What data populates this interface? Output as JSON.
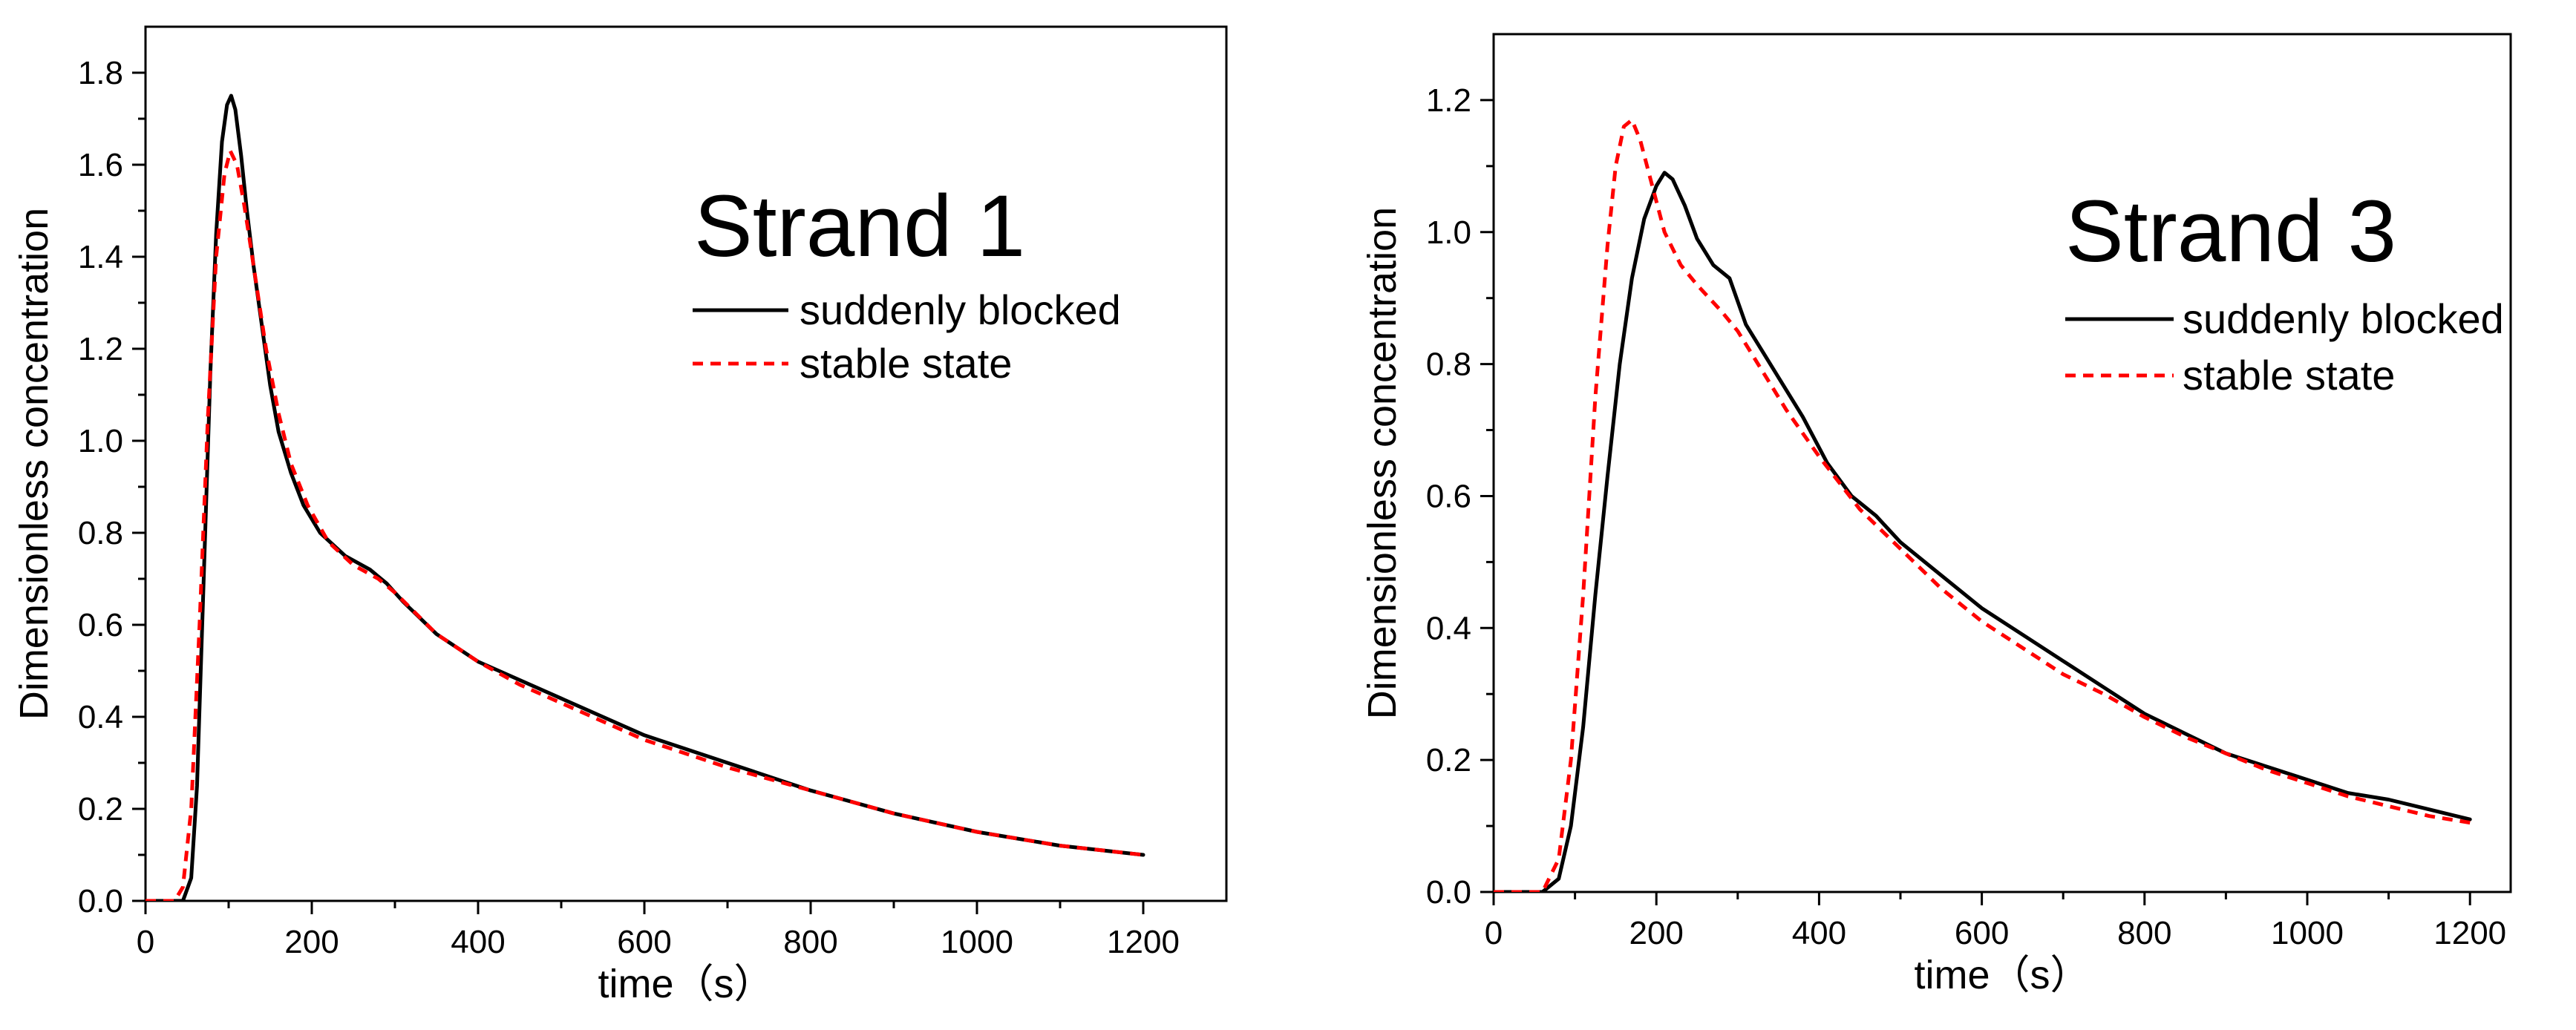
{
  "chart_data": [
    {
      "type": "line",
      "title": "Strand 1",
      "xlabel": "time（s）",
      "ylabel": "Dimensionless concentration",
      "xlim": [
        0,
        1300
      ],
      "ylim": [
        0,
        1.9
      ],
      "xticks": [
        0,
        200,
        400,
        600,
        800,
        1000,
        1200
      ],
      "yticks": [
        0.0,
        0.2,
        0.4,
        0.6,
        0.8,
        1.0,
        1.2,
        1.4,
        1.6,
        1.8
      ],
      "xtick_labels": [
        "0",
        "200",
        "400",
        "600",
        "800",
        "1000",
        "1200"
      ],
      "ytick_labels": [
        "0.0",
        "0.2",
        "0.4",
        "0.6",
        "0.8",
        "1.0",
        "1.2",
        "1.4",
        "1.6",
        "1.8"
      ],
      "grid": false,
      "legend_position": "top-right",
      "series": [
        {
          "name": "suddenly blocked",
          "color": "#000000",
          "style": "solid",
          "x": [
            0,
            45,
            55,
            62,
            70,
            78,
            85,
            92,
            98,
            103,
            108,
            115,
            122,
            130,
            140,
            150,
            160,
            175,
            190,
            210,
            240,
            270,
            290,
            310,
            350,
            400,
            450,
            500,
            550,
            600,
            700,
            800,
            900,
            1000,
            1100,
            1200
          ],
          "y": [
            0,
            0,
            0.05,
            0.25,
            0.7,
            1.15,
            1.45,
            1.65,
            1.73,
            1.75,
            1.72,
            1.62,
            1.5,
            1.38,
            1.25,
            1.12,
            1.02,
            0.93,
            0.86,
            0.8,
            0.75,
            0.72,
            0.69,
            0.65,
            0.58,
            0.52,
            0.48,
            0.44,
            0.4,
            0.36,
            0.3,
            0.24,
            0.19,
            0.15,
            0.12,
            0.1
          ]
        },
        {
          "name": "stable state",
          "color": "#ff0000",
          "style": "dashed",
          "x": [
            0,
            35,
            45,
            55,
            65,
            75,
            85,
            95,
            102,
            110,
            118,
            125,
            135,
            145,
            160,
            175,
            195,
            220,
            250,
            280,
            300,
            350,
            400,
            450,
            500,
            550,
            600,
            700,
            800,
            900,
            1000,
            1100,
            1200
          ],
          "y": [
            0,
            0,
            0.03,
            0.2,
            0.6,
            1.05,
            1.4,
            1.58,
            1.63,
            1.6,
            1.52,
            1.44,
            1.32,
            1.2,
            1.06,
            0.95,
            0.86,
            0.78,
            0.73,
            0.7,
            0.67,
            0.58,
            0.52,
            0.47,
            0.43,
            0.39,
            0.35,
            0.29,
            0.24,
            0.19,
            0.15,
            0.12,
            0.1
          ]
        }
      ]
    },
    {
      "type": "line",
      "title": "Strand 3",
      "xlabel": "time（s）",
      "ylabel": "Dimensionless concentration",
      "xlim": [
        0,
        1250
      ],
      "ylim": [
        0,
        1.3
      ],
      "xticks": [
        0,
        200,
        400,
        600,
        800,
        1000,
        1200
      ],
      "yticks": [
        0.0,
        0.2,
        0.4,
        0.6,
        0.8,
        1.0,
        1.2
      ],
      "xtick_labels": [
        "0",
        "200",
        "400",
        "600",
        "800",
        "1000",
        "1200"
      ],
      "ytick_labels": [
        "0.0",
        "0.2",
        "0.4",
        "0.6",
        "0.8",
        "1.0",
        "1.2"
      ],
      "grid": false,
      "legend_position": "top-right",
      "series": [
        {
          "name": "suddenly blocked",
          "color": "#000000",
          "style": "solid",
          "x": [
            0,
            60,
            80,
            95,
            110,
            125,
            140,
            155,
            170,
            185,
            200,
            210,
            220,
            235,
            250,
            270,
            290,
            310,
            330,
            350,
            380,
            410,
            440,
            470,
            500,
            550,
            600,
            650,
            700,
            750,
            800,
            850,
            900,
            950,
            1000,
            1050,
            1100,
            1150,
            1200
          ],
          "y": [
            0,
            0,
            0.02,
            0.1,
            0.25,
            0.45,
            0.63,
            0.8,
            0.93,
            1.02,
            1.07,
            1.09,
            1.08,
            1.04,
            0.99,
            0.95,
            0.93,
            0.86,
            0.82,
            0.78,
            0.72,
            0.65,
            0.6,
            0.57,
            0.53,
            0.48,
            0.43,
            0.39,
            0.35,
            0.31,
            0.27,
            0.24,
            0.21,
            0.19,
            0.17,
            0.15,
            0.14,
            0.125,
            0.11
          ]
        },
        {
          "name": "stable state",
          "color": "#ff0000",
          "style": "dashed",
          "x": [
            0,
            60,
            80,
            95,
            110,
            125,
            140,
            150,
            160,
            170,
            180,
            195,
            210,
            230,
            250,
            280,
            300,
            330,
            360,
            400,
            450,
            500,
            550,
            600,
            650,
            700,
            750,
            800,
            850,
            900,
            950,
            1000,
            1050,
            1100,
            1150,
            1200
          ],
          "y": [
            0,
            0,
            0.05,
            0.2,
            0.45,
            0.75,
            0.98,
            1.1,
            1.16,
            1.17,
            1.14,
            1.07,
            1.0,
            0.95,
            0.92,
            0.88,
            0.85,
            0.79,
            0.73,
            0.66,
            0.58,
            0.52,
            0.46,
            0.41,
            0.37,
            0.33,
            0.3,
            0.265,
            0.235,
            0.21,
            0.185,
            0.165,
            0.145,
            0.13,
            0.115,
            0.105
          ]
        }
      ]
    }
  ]
}
